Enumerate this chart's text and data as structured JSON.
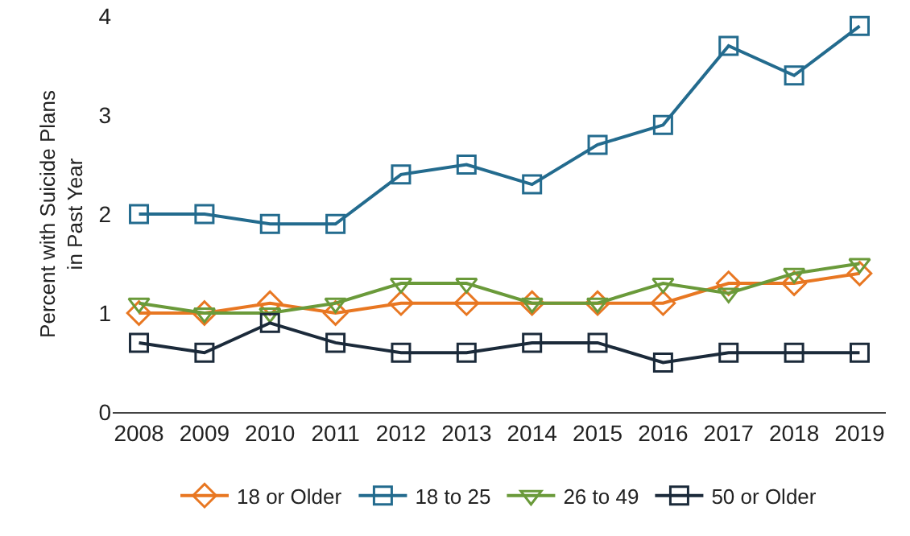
{
  "chart_data": {
    "type": "line",
    "ylabel": "Percent with Suicide Plans\nin Past Year",
    "categories": [
      "2008",
      "2009",
      "2010",
      "2011",
      "2012",
      "2013",
      "2014",
      "2015",
      "2016",
      "2017",
      "2018",
      "2019"
    ],
    "series": [
      {
        "name": "18 or Older",
        "color": "#e87722",
        "marker": "diamond",
        "values": [
          1.0,
          1.0,
          1.1,
          1.0,
          1.1,
          1.1,
          1.1,
          1.1,
          1.1,
          1.3,
          1.3,
          1.4
        ]
      },
      {
        "name": "18 to 25",
        "color": "#236b8e",
        "marker": "square",
        "values": [
          2.0,
          2.0,
          1.9,
          1.9,
          2.4,
          2.5,
          2.3,
          2.7,
          2.9,
          3.7,
          3.4,
          3.9
        ]
      },
      {
        "name": "26 to 49",
        "color": "#6a9a3a",
        "marker": "triangle",
        "values": [
          1.1,
          1.0,
          1.0,
          1.1,
          1.3,
          1.3,
          1.1,
          1.1,
          1.3,
          1.2,
          1.4,
          1.5
        ]
      },
      {
        "name": "50 or Older",
        "color": "#1b2a3a",
        "marker": "square",
        "values": [
          0.7,
          0.6,
          0.9,
          0.7,
          0.6,
          0.6,
          0.7,
          0.7,
          0.5,
          0.6,
          0.6,
          0.6
        ]
      }
    ],
    "ylim": [
      0,
      4
    ],
    "yticks": [
      0,
      1,
      2,
      3,
      4
    ],
    "grid": false,
    "legend": "bottom",
    "line_style": "solid"
  }
}
